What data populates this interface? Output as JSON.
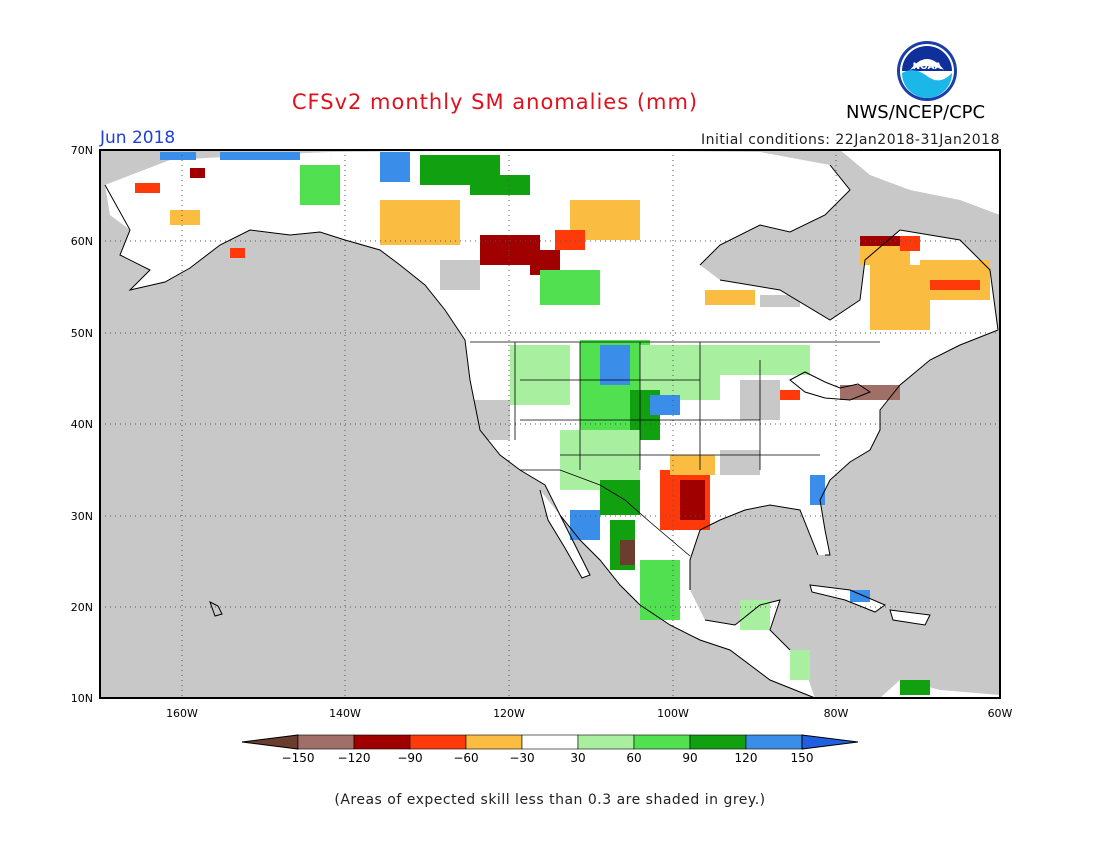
{
  "header": {
    "title": "CFSv2 monthly SM anomalies (mm)",
    "agency": "NWS/NCEP/CPC",
    "valid_month": "Jun 2018",
    "initial_conditions": "Initial conditions: 22Jan2018-31Jan2018",
    "logo_text": "NOAA"
  },
  "axes": {
    "lat_labels": [
      "70N",
      "60N",
      "50N",
      "40N",
      "30N",
      "20N",
      "10N"
    ],
    "lon_labels": [
      "160W",
      "140W",
      "120W",
      "100W",
      "80W",
      "60W"
    ]
  },
  "colorbar": {
    "labels": [
      "-150",
      "-120",
      "-90",
      "-60",
      "-30",
      "30",
      "60",
      "90",
      "120",
      "150"
    ],
    "colors": [
      "#6b3d2e",
      "#a07068",
      "#a00000",
      "#ff3a0a",
      "#fbbc42",
      "#ffffff",
      "#a8f0a0",
      "#50e050",
      "#10a010",
      "#3a8de8",
      "#1f5fe0"
    ]
  },
  "footnote": "(Areas of expected skill less than 0.3 are shaded in grey.)",
  "colors": {
    "ocean": "#c8c8c8",
    "land": "#ffffff",
    "title": "#e0101c",
    "month": "#1f3fd8"
  }
}
